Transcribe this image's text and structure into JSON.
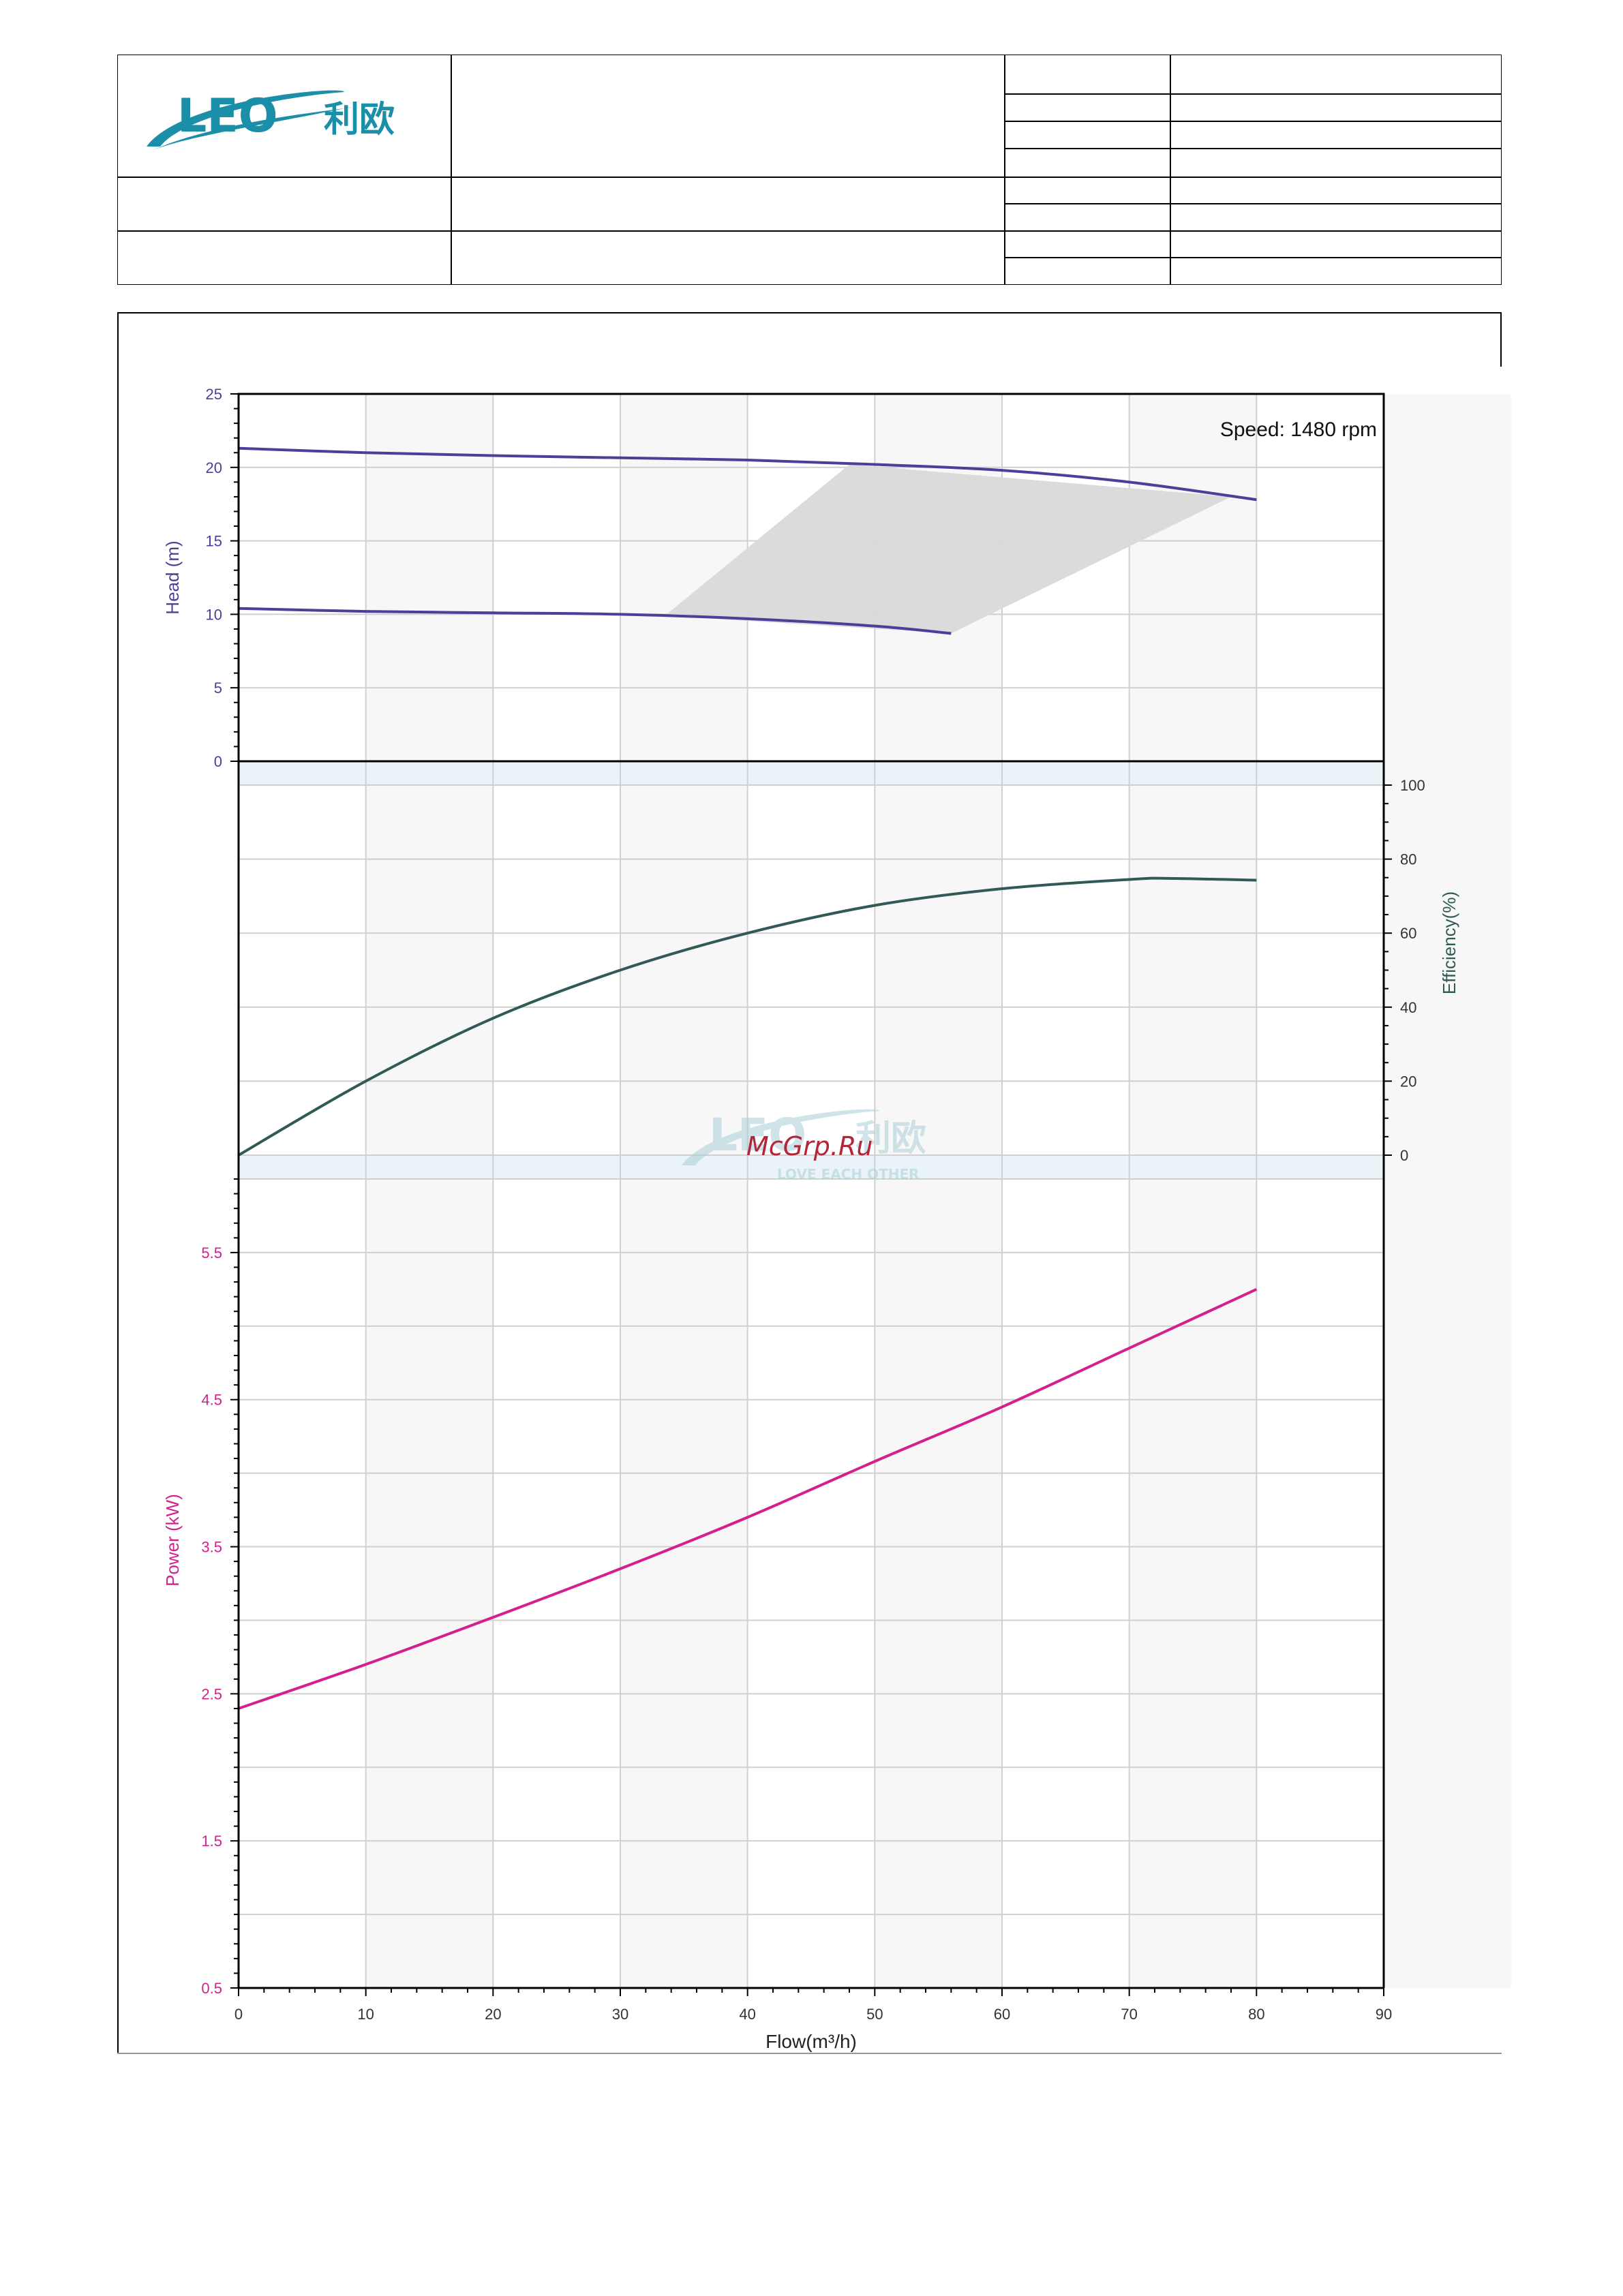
{
  "logo": {
    "text_latin": "LEO",
    "text_cjk": "利欧",
    "icon": "leo-swoosh-logo"
  },
  "watermark": {
    "text": "McGrp.Ru",
    "tagline": "LOVE EACH OTHER"
  },
  "colors": {
    "head": "#4b3f9a",
    "efficiency": "#2f5a56",
    "power": "#d4208f",
    "operating_range": "#d9d9d9",
    "band": "#eaf4f8",
    "grid": "#d0d0d0"
  },
  "chart_data": [
    {
      "type": "line",
      "panel": "head",
      "annotation": "Speed: 1480 rpm",
      "ylabel": "Head (m)",
      "ylim": [
        0,
        25
      ],
      "yticks": [
        0,
        5,
        10,
        15,
        20,
        25
      ],
      "series": [
        {
          "x": [
            0,
            10,
            20,
            30,
            40,
            50,
            60,
            70,
            80
          ],
          "values": [
            21.3,
            21.0,
            20.8,
            20.65,
            20.5,
            20.2,
            19.8,
            19.0,
            17.8
          ]
        },
        {
          "x": [
            0,
            10,
            20,
            30,
            40,
            50,
            56
          ],
          "values": [
            10.4,
            10.2,
            10.1,
            10.0,
            9.7,
            9.2,
            8.7
          ]
        }
      ],
      "operating_range": [
        [
          33.5,
          9.9
        ],
        [
          48,
          20.2
        ],
        [
          78,
          18.0
        ],
        [
          56,
          8.7
        ]
      ]
    },
    {
      "type": "line",
      "panel": "efficiency",
      "ylabel": "Efficiency(%)",
      "ylim": [
        0,
        100
      ],
      "yticks": [
        0,
        20,
        40,
        60,
        80,
        100
      ],
      "series": [
        {
          "x": [
            0,
            10,
            20,
            30,
            40,
            50,
            60,
            70,
            73,
            80
          ],
          "values": [
            0,
            20,
            37,
            50,
            60,
            67.5,
            72,
            74.5,
            74.8,
            74.3
          ]
        }
      ]
    },
    {
      "type": "line",
      "panel": "power",
      "ylabel": "Power (kW)",
      "xlabel": "Flow(m³/h)",
      "xlim": [
        0,
        90
      ],
      "xticks": [
        0,
        10,
        20,
        30,
        40,
        50,
        60,
        70,
        80,
        90
      ],
      "ylim": [
        0.5,
        6
      ],
      "yticks": [
        0.5,
        1.5,
        2.5,
        3.5,
        4.5,
        5.5
      ],
      "series": [
        {
          "x": [
            0,
            10,
            20,
            30,
            40,
            50,
            60,
            70,
            80
          ],
          "values": [
            2.4,
            2.7,
            3.02,
            3.35,
            3.7,
            4.08,
            4.45,
            4.85,
            5.25
          ]
        }
      ]
    }
  ]
}
